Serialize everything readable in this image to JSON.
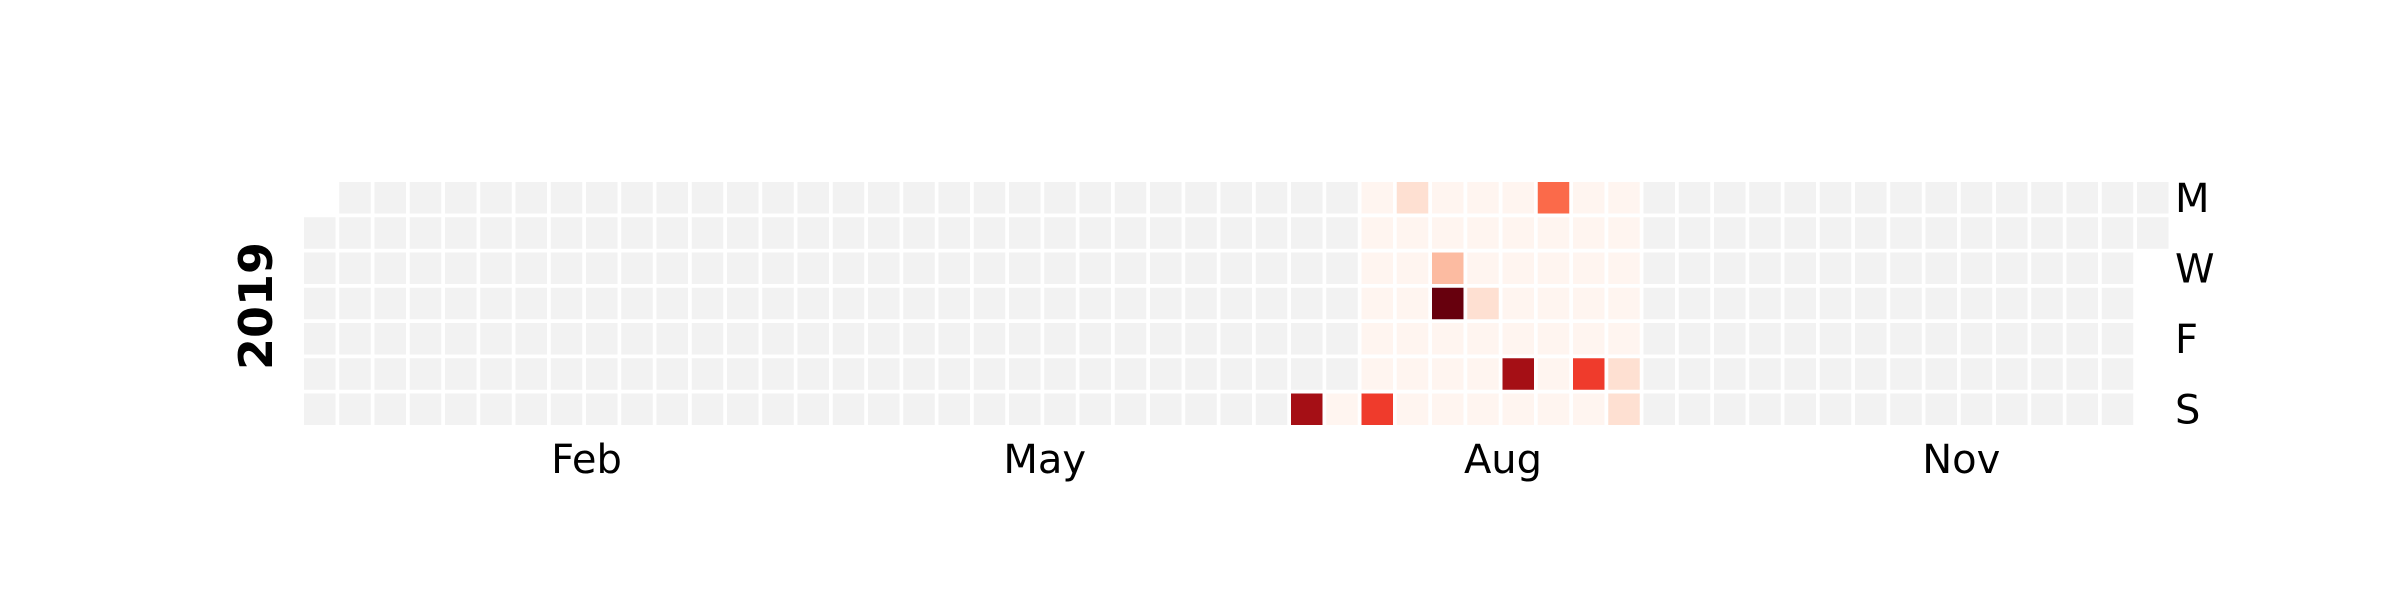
{
  "chart_data": {
    "type": "heatmap",
    "title": "",
    "year": "2019",
    "weeks": 53,
    "days": 7,
    "first_weekday_row": 1,
    "month_labels": [
      {
        "label": "Feb",
        "week": 7
      },
      {
        "label": "May",
        "week": 20
      },
      {
        "label": "Aug",
        "week": 33
      },
      {
        "label": "Nov",
        "week": 46
      }
    ],
    "day_labels": [
      {
        "label": "M",
        "row": 0
      },
      {
        "label": "W",
        "row": 2
      },
      {
        "label": "F",
        "row": 4
      },
      {
        "label": "S",
        "row": 6
      }
    ],
    "empty_color": "#f2f2f2",
    "background_color": "#ffffff",
    "colormap": [
      "#fff5f0",
      "#fee0d2",
      "#fcbba1",
      "#fc9272",
      "#fb6a4a",
      "#ef3b2c",
      "#cb181d",
      "#a50f15",
      "#67000d"
    ],
    "empty_value": -1,
    "first_day_row_offset": 1,
    "values_by_week": [
      [
        -1,
        -1,
        -1,
        -1,
        -1,
        -1
      ],
      [
        -1,
        -1,
        -1,
        -1,
        -1,
        -1,
        -1
      ],
      [
        -1,
        -1,
        -1,
        -1,
        -1,
        -1,
        -1
      ],
      [
        -1,
        -1,
        -1,
        -1,
        -1,
        -1,
        -1
      ],
      [
        -1,
        -1,
        -1,
        -1,
        -1,
        -1,
        -1
      ],
      [
        -1,
        -1,
        -1,
        -1,
        -1,
        -1,
        -1
      ],
      [
        -1,
        -1,
        -1,
        -1,
        -1,
        -1,
        -1
      ],
      [
        -1,
        -1,
        -1,
        -1,
        -1,
        -1,
        -1
      ],
      [
        -1,
        -1,
        -1,
        -1,
        -1,
        -1,
        -1
      ],
      [
        -1,
        -1,
        -1,
        -1,
        -1,
        -1,
        -1
      ],
      [
        -1,
        -1,
        -1,
        -1,
        -1,
        -1,
        -1
      ],
      [
        -1,
        -1,
        -1,
        -1,
        -1,
        -1,
        -1
      ],
      [
        -1,
        -1,
        -1,
        -1,
        -1,
        -1,
        -1
      ],
      [
        -1,
        -1,
        -1,
        -1,
        -1,
        -1,
        -1
      ],
      [
        -1,
        -1,
        -1,
        -1,
        -1,
        -1,
        -1
      ],
      [
        -1,
        -1,
        -1,
        -1,
        -1,
        -1,
        -1
      ],
      [
        -1,
        -1,
        -1,
        -1,
        -1,
        -1,
        -1
      ],
      [
        -1,
        -1,
        -1,
        -1,
        -1,
        -1,
        -1
      ],
      [
        -1,
        -1,
        -1,
        -1,
        -1,
        -1,
        -1
      ],
      [
        -1,
        -1,
        -1,
        -1,
        -1,
        -1,
        -1
      ],
      [
        -1,
        -1,
        -1,
        -1,
        -1,
        -1,
        -1
      ],
      [
        -1,
        -1,
        -1,
        -1,
        -1,
        -1,
        -1
      ],
      [
        -1,
        -1,
        -1,
        -1,
        -1,
        -1,
        -1
      ],
      [
        -1,
        -1,
        -1,
        -1,
        -1,
        -1,
        -1
      ],
      [
        -1,
        -1,
        -1,
        -1,
        -1,
        -1,
        -1
      ],
      [
        -1,
        -1,
        -1,
        -1,
        -1,
        -1,
        -1
      ],
      [
        -1,
        -1,
        -1,
        -1,
        -1,
        -1,
        -1
      ],
      [
        -1,
        -1,
        -1,
        -1,
        -1,
        -1,
        -1
      ],
      [
        -1,
        -1,
        -1,
        -1,
        -1,
        -1,
        7
      ],
      [
        -1,
        -1,
        -1,
        -1,
        -1,
        -1,
        0
      ],
      [
        0,
        0,
        0,
        0,
        0,
        0,
        5
      ],
      [
        1,
        0,
        0,
        0,
        0,
        0,
        0
      ],
      [
        0,
        0,
        2,
        8,
        0,
        0,
        0
      ],
      [
        0,
        0,
        0,
        1,
        0,
        0,
        0
      ],
      [
        0,
        0,
        0,
        0,
        0,
        7,
        0
      ],
      [
        4,
        0,
        0,
        0,
        0,
        0,
        0
      ],
      [
        0,
        0,
        0,
        0,
        0,
        5,
        0
      ],
      [
        0,
        0,
        0,
        0,
        0,
        1,
        1
      ],
      [
        -1,
        -1,
        -1,
        -1,
        -1,
        -1,
        -1
      ],
      [
        -1,
        -1,
        -1,
        -1,
        -1,
        -1,
        -1
      ],
      [
        -1,
        -1,
        -1,
        -1,
        -1,
        -1,
        -1
      ],
      [
        -1,
        -1,
        -1,
        -1,
        -1,
        -1,
        -1
      ],
      [
        -1,
        -1,
        -1,
        -1,
        -1,
        -1,
        -1
      ],
      [
        -1,
        -1,
        -1,
        -1,
        -1,
        -1,
        -1
      ],
      [
        -1,
        -1,
        -1,
        -1,
        -1,
        -1,
        -1
      ],
      [
        -1,
        -1,
        -1,
        -1,
        -1,
        -1,
        -1
      ],
      [
        -1,
        -1,
        -1,
        -1,
        -1,
        -1,
        -1
      ],
      [
        -1,
        -1,
        -1,
        -1,
        -1,
        -1,
        -1
      ],
      [
        -1,
        -1,
        -1,
        -1,
        -1,
        -1,
        -1
      ],
      [
        -1,
        -1,
        -1,
        -1,
        -1,
        -1,
        -1
      ],
      [
        -1,
        -1,
        -1,
        -1,
        -1,
        -1,
        -1
      ],
      [
        -1,
        -1,
        -1,
        -1,
        -1,
        -1,
        -1
      ],
      [
        -1,
        -1
      ]
    ]
  }
}
